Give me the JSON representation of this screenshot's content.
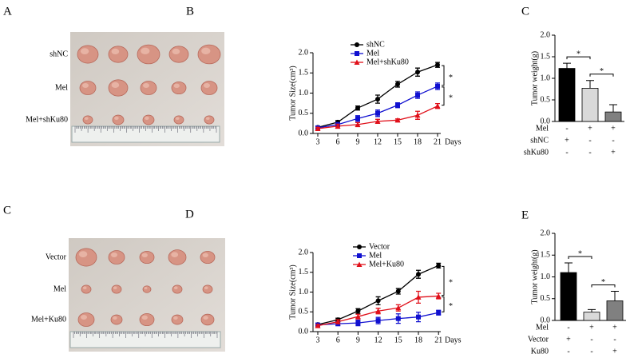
{
  "panels": [
    "A",
    "B",
    "C",
    "C",
    "D",
    "E"
  ],
  "photos": [
    {
      "rows": [
        "shNC",
        "Mel",
        "Mel+shKu80"
      ]
    },
    {
      "rows": [
        "Vector",
        "Mel",
        "Mel+Ku80"
      ]
    }
  ],
  "chart_data": [
    {
      "type": "line",
      "ylabel": "Tumor Size(cm³)",
      "xlabel": "Days",
      "categories": [
        "3",
        "6",
        "9",
        "12",
        "15",
        "18",
        "21"
      ],
      "ylim": [
        0,
        2.0
      ],
      "yticks": [
        {
          "value": 0,
          "label": "0.0"
        },
        {
          "value": 0.5,
          "label": "0.5"
        },
        {
          "value": 1,
          "label": "1.0"
        },
        {
          "value": 1.5,
          "label": "1.5"
        },
        {
          "value": 2,
          "label": "2.0"
        }
      ],
      "legend": "upper left",
      "series": [
        {
          "name": "shNC",
          "color": "#000000",
          "marker": "circle",
          "values": [
            0.15,
            0.28,
            0.63,
            0.85,
            1.22,
            1.52,
            1.7
          ],
          "errors": [
            0.03,
            0.04,
            0.05,
            0.1,
            0.07,
            0.1,
            0.06
          ]
        },
        {
          "name": "Mel",
          "color": "#1010d0",
          "marker": "square",
          "values": [
            0.14,
            0.22,
            0.37,
            0.5,
            0.7,
            0.95,
            1.17
          ],
          "errors": [
            0.03,
            0.05,
            0.07,
            0.08,
            0.06,
            0.08,
            0.08
          ]
        },
        {
          "name": "Mel+shKu80",
          "color": "#e0101a",
          "marker": "triangle",
          "values": [
            0.12,
            0.18,
            0.22,
            0.3,
            0.33,
            0.45,
            0.68
          ],
          "errors": [
            0.03,
            0.05,
            0.05,
            0.05,
            0.03,
            0.1,
            0.06
          ]
        }
      ],
      "annotations": [
        "*",
        "*"
      ]
    },
    {
      "type": "bar",
      "ylabel": "Tumor weight(g)",
      "categories": [
        null,
        null,
        null
      ],
      "values": [
        1.23,
        0.77,
        0.22
      ],
      "errors": [
        0.12,
        0.18,
        0.17
      ],
      "colors": [
        "#000000",
        "#d9d9d9",
        "#808080"
      ],
      "ylim": [
        0,
        2.0
      ],
      "yticks": [
        {
          "value": 0,
          "label": "0.0"
        },
        {
          "value": 0.5,
          "label": "0.5"
        },
        {
          "value": 1,
          "label": "1.0"
        },
        {
          "value": 1.5,
          "label": "1.5"
        },
        {
          "value": 2,
          "label": "2.0"
        }
      ],
      "conditions": [
        {
          "name": "Mel",
          "signs": [
            "-",
            "+",
            "+"
          ]
        },
        {
          "name": "shNC",
          "signs": [
            "+",
            "-",
            "-"
          ]
        },
        {
          "name": "shKu80",
          "signs": [
            "-",
            "-",
            "+"
          ]
        }
      ],
      "annotations": [
        "*",
        "*"
      ]
    },
    {
      "type": "line",
      "ylabel": "Tumor Size(cm³)",
      "xlabel": "Days",
      "categories": [
        "3",
        "6",
        "9",
        "12",
        "15",
        "18",
        "21"
      ],
      "ylim": [
        0,
        2.0
      ],
      "yticks": [
        {
          "value": 0,
          "label": "0.0"
        },
        {
          "value": 0.5,
          "label": "0.5"
        },
        {
          "value": 1,
          "label": "1.0"
        },
        {
          "value": 1.5,
          "label": "1.5"
        },
        {
          "value": 2,
          "label": "2.0"
        }
      ],
      "legend": "upper left",
      "series": [
        {
          "name": "Vector",
          "color": "#000000",
          "marker": "circle",
          "values": [
            0.18,
            0.3,
            0.52,
            0.78,
            1.02,
            1.45,
            1.67
          ],
          "errors": [
            0.03,
            0.04,
            0.06,
            0.1,
            0.07,
            0.1,
            0.06
          ]
        },
        {
          "name": "Mel",
          "color": "#1010d0",
          "marker": "square",
          "values": [
            0.17,
            0.2,
            0.22,
            0.28,
            0.33,
            0.37,
            0.48
          ],
          "errors": [
            0.03,
            0.05,
            0.07,
            0.08,
            0.12,
            0.12,
            0.06
          ]
        },
        {
          "name": "Mel+Ku80",
          "color": "#e0101a",
          "marker": "triangle",
          "values": [
            0.15,
            0.25,
            0.38,
            0.52,
            0.6,
            0.87,
            0.9
          ],
          "errors": [
            0.03,
            0.05,
            0.06,
            0.07,
            0.08,
            0.15,
            0.07
          ]
        }
      ],
      "annotations": [
        "*",
        "*"
      ]
    },
    {
      "type": "bar",
      "ylabel": "Tumor weight(g)",
      "categories": [
        null,
        null,
        null
      ],
      "values": [
        1.1,
        0.19,
        0.45
      ],
      "errors": [
        0.22,
        0.06,
        0.22
      ],
      "colors": [
        "#000000",
        "#d9d9d9",
        "#808080"
      ],
      "ylim": [
        0,
        2.0
      ],
      "yticks": [
        {
          "value": 0,
          "label": "0.0"
        },
        {
          "value": 0.5,
          "label": "0.5"
        },
        {
          "value": 1,
          "label": "1.0"
        },
        {
          "value": 1.5,
          "label": "1.5"
        },
        {
          "value": 2,
          "label": "2.0"
        }
      ],
      "conditions": [
        {
          "name": "Mel",
          "signs": [
            "-",
            "+",
            "+"
          ]
        },
        {
          "name": "Vector",
          "signs": [
            "+",
            "-",
            "-"
          ]
        },
        {
          "name": "Ku80",
          "signs": [
            "-",
            "-",
            "+"
          ]
        }
      ],
      "annotations": [
        "*",
        "*"
      ]
    }
  ]
}
